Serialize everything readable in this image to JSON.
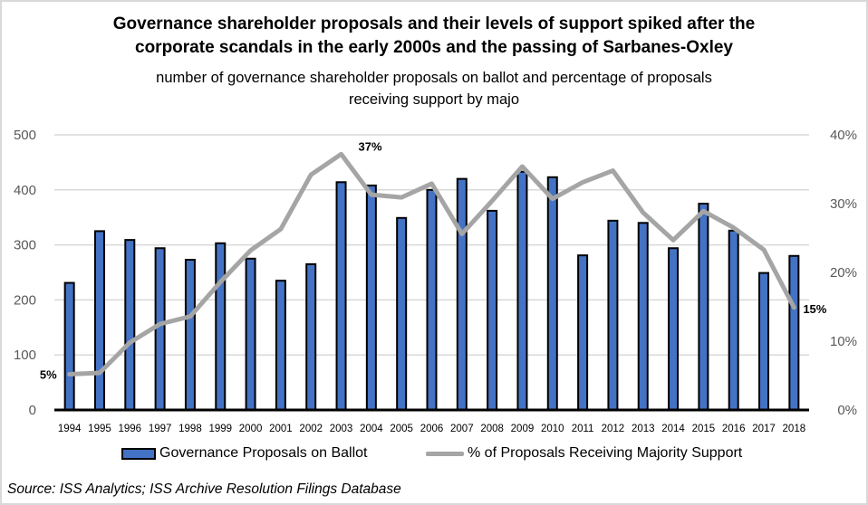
{
  "chart_data": {
    "type": "bar+line",
    "title": "Governance shareholder proposals and their levels of support spiked after the corporate scandals in the early 2000s and the passing of Sarbanes-Oxley",
    "title_lines": [
      "Governance shareholder proposals and their levels of support spiked after the",
      "corporate scandals in the early 2000s and the passing of Sarbanes-Oxley"
    ],
    "subtitle_lines": [
      "number of governance shareholder proposals on ballot and percentage of proposals",
      "receiving support by majo"
    ],
    "categories": [
      "1994",
      "1995",
      "1996",
      "1997",
      "1998",
      "1999",
      "2000",
      "2001",
      "2002",
      "2003",
      "2004",
      "2005",
      "2006",
      "2007",
      "2008",
      "2009",
      "2010",
      "2011",
      "2012",
      "2013",
      "2014",
      "2015",
      "2016",
      "2017",
      "2018"
    ],
    "series": [
      {
        "name": "Governance Proposals on Ballot",
        "type": "bar",
        "axis": "left",
        "color": "#4472C4",
        "values": [
          231,
          325,
          309,
          294,
          273,
          303,
          275,
          235,
          265,
          414,
          408,
          349,
          400,
          420,
          362,
          433,
          423,
          281,
          344,
          340,
          294,
          375,
          326,
          249,
          280
        ]
      },
      {
        "name": "% of Proposals Receiving Majority Support",
        "type": "line",
        "axis": "right",
        "color": "#A5A5A5",
        "values": [
          5.2,
          5.4,
          9.8,
          12.5,
          13.6,
          18.6,
          23.2,
          26.3,
          34.2,
          37.2,
          31.3,
          30.9,
          32.9,
          25.6,
          30.4,
          35.4,
          30.7,
          33.1,
          34.8,
          28.7,
          24.7,
          28.9,
          26.5,
          23.3,
          14.9
        ]
      }
    ],
    "data_labels": [
      {
        "category": "1994",
        "series": "% of Proposals Receiving Majority Support",
        "text": "5%"
      },
      {
        "category": "2003",
        "series": "% of Proposals Receiving Majority Support",
        "text": "37%"
      },
      {
        "category": "2018",
        "series": "% of Proposals Receiving Majority Support",
        "text": "15%"
      }
    ],
    "left_axis": {
      "ylim": [
        0,
        500
      ],
      "ticks": [
        0,
        100,
        200,
        300,
        400,
        500
      ],
      "tick_labels": [
        "0",
        "100",
        "200",
        "300",
        "400",
        "500"
      ]
    },
    "right_axis": {
      "ylim": [
        0,
        40
      ],
      "ticks": [
        0,
        10,
        20,
        30,
        40
      ],
      "tick_labels": [
        "0%",
        "10%",
        "20%",
        "30%",
        "40%"
      ]
    },
    "xlabel": "",
    "ylabel": "",
    "grid": true,
    "legend_position": "bottom",
    "source": "Source: ISS Analytics; ISS Archive Resolution Filings Database"
  }
}
